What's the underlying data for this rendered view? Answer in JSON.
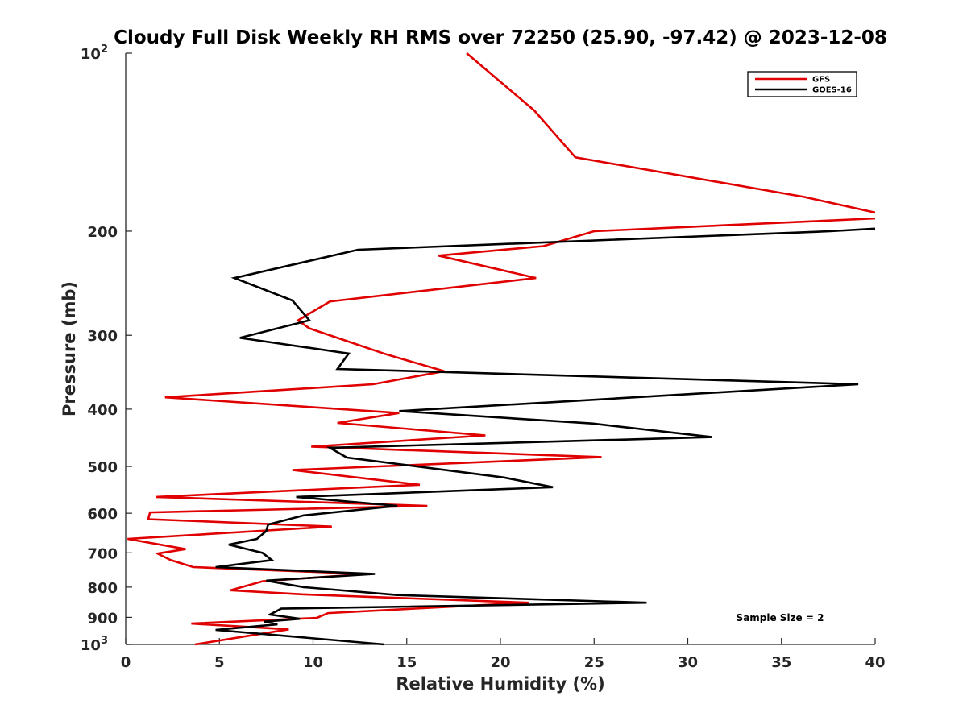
{
  "chart_data": {
    "type": "line",
    "title": "Cloudy Full Disk Weekly RH RMS over 72250 (25.90, -97.42) @ 2023-12-08",
    "xlabel": "Relative Humidity (%)",
    "ylabel": "Pressure (mb)",
    "xlim": [
      0,
      40
    ],
    "ylim": [
      100,
      1000
    ],
    "y_scale": "log",
    "y_reversed": true,
    "x_ticks": [
      "0",
      "5",
      "10",
      "15",
      "20",
      "25",
      "30",
      "35",
      "40"
    ],
    "y_ticks": [
      {
        "value": 100,
        "base": "10",
        "exp": "2"
      },
      {
        "value": 200,
        "label": "200"
      },
      {
        "value": 300,
        "label": "300"
      },
      {
        "value": 400,
        "label": "400"
      },
      {
        "value": 500,
        "label": "500"
      },
      {
        "value": 600,
        "label": "600"
      },
      {
        "value": 700,
        "label": "700"
      },
      {
        "value": 800,
        "label": "800"
      },
      {
        "value": 900,
        "label": "900"
      },
      {
        "value": 1000,
        "base": "10",
        "exp": "3"
      }
    ],
    "legend_position": "top-right",
    "annotation": "Sample Size = 2",
    "series": [
      {
        "name": "GFS",
        "color": "#e00000",
        "points": [
          [
            18.2,
            100
          ],
          [
            21.8,
            125
          ],
          [
            24.0,
            150
          ],
          [
            36.2,
            175
          ],
          [
            40.0,
            186
          ],
          [
            40.5,
            190
          ],
          [
            25.0,
            200
          ],
          [
            22.3,
            212
          ],
          [
            16.7,
            220
          ],
          [
            21.9,
            240
          ],
          [
            10.9,
            263
          ],
          [
            9.2,
            283
          ],
          [
            9.8,
            292
          ],
          [
            11.3,
            303
          ],
          [
            13.9,
            323
          ],
          [
            17.0,
            345
          ],
          [
            13.2,
            363
          ],
          [
            2.1,
            382
          ],
          [
            14.6,
            406
          ],
          [
            11.3,
            422
          ],
          [
            19.2,
            443
          ],
          [
            9.9,
            463
          ],
          [
            25.4,
            482
          ],
          [
            8.9,
            507
          ],
          [
            15.7,
            537
          ],
          [
            1.6,
            563
          ],
          [
            16.1,
            583
          ],
          [
            1.3,
            598
          ],
          [
            1.2,
            614
          ],
          [
            11.0,
            632
          ],
          [
            0.1,
            663
          ],
          [
            3.2,
            690
          ],
          [
            1.7,
            702
          ],
          [
            2.4,
            720
          ],
          [
            3.6,
            740
          ],
          [
            12.8,
            760
          ],
          [
            7.3,
            782
          ],
          [
            5.6,
            810
          ],
          [
            9.5,
            823
          ],
          [
            21.5,
            850
          ],
          [
            10.8,
            885
          ],
          [
            10.2,
            902
          ],
          [
            3.5,
            922
          ],
          [
            8.7,
            943
          ],
          [
            3.7,
            1000
          ]
        ]
      },
      {
        "name": "GOES-16",
        "color": "#000000",
        "points": [
          [
            40.0,
            198
          ],
          [
            37.6,
            200
          ],
          [
            12.4,
            215
          ],
          [
            5.8,
            240
          ],
          [
            8.9,
            262
          ],
          [
            9.8,
            283
          ],
          [
            6.1,
            303
          ],
          [
            11.9,
            322
          ],
          [
            11.3,
            342
          ],
          [
            15.5,
            345
          ],
          [
            39.1,
            363
          ],
          [
            14.6,
            403
          ],
          [
            24.9,
            423
          ],
          [
            31.3,
            446
          ],
          [
            10.9,
            465
          ],
          [
            11.8,
            483
          ],
          [
            20.2,
            522
          ],
          [
            22.8,
            542
          ],
          [
            9.1,
            563
          ],
          [
            14.5,
            583
          ],
          [
            9.5,
            605
          ],
          [
            7.6,
            627
          ],
          [
            7.5,
            643
          ],
          [
            7.0,
            663
          ],
          [
            5.5,
            678
          ],
          [
            7.3,
            700
          ],
          [
            7.8,
            720
          ],
          [
            4.8,
            740
          ],
          [
            13.3,
            760
          ],
          [
            7.5,
            780
          ],
          [
            9.5,
            800
          ],
          [
            14.5,
            825
          ],
          [
            27.8,
            850
          ],
          [
            8.3,
            870
          ],
          [
            8.0,
            880
          ],
          [
            7.7,
            890
          ],
          [
            9.3,
            905
          ],
          [
            7.4,
            915
          ],
          [
            8.1,
            925
          ],
          [
            4.8,
            945
          ],
          [
            13.8,
            1000
          ]
        ]
      }
    ]
  }
}
